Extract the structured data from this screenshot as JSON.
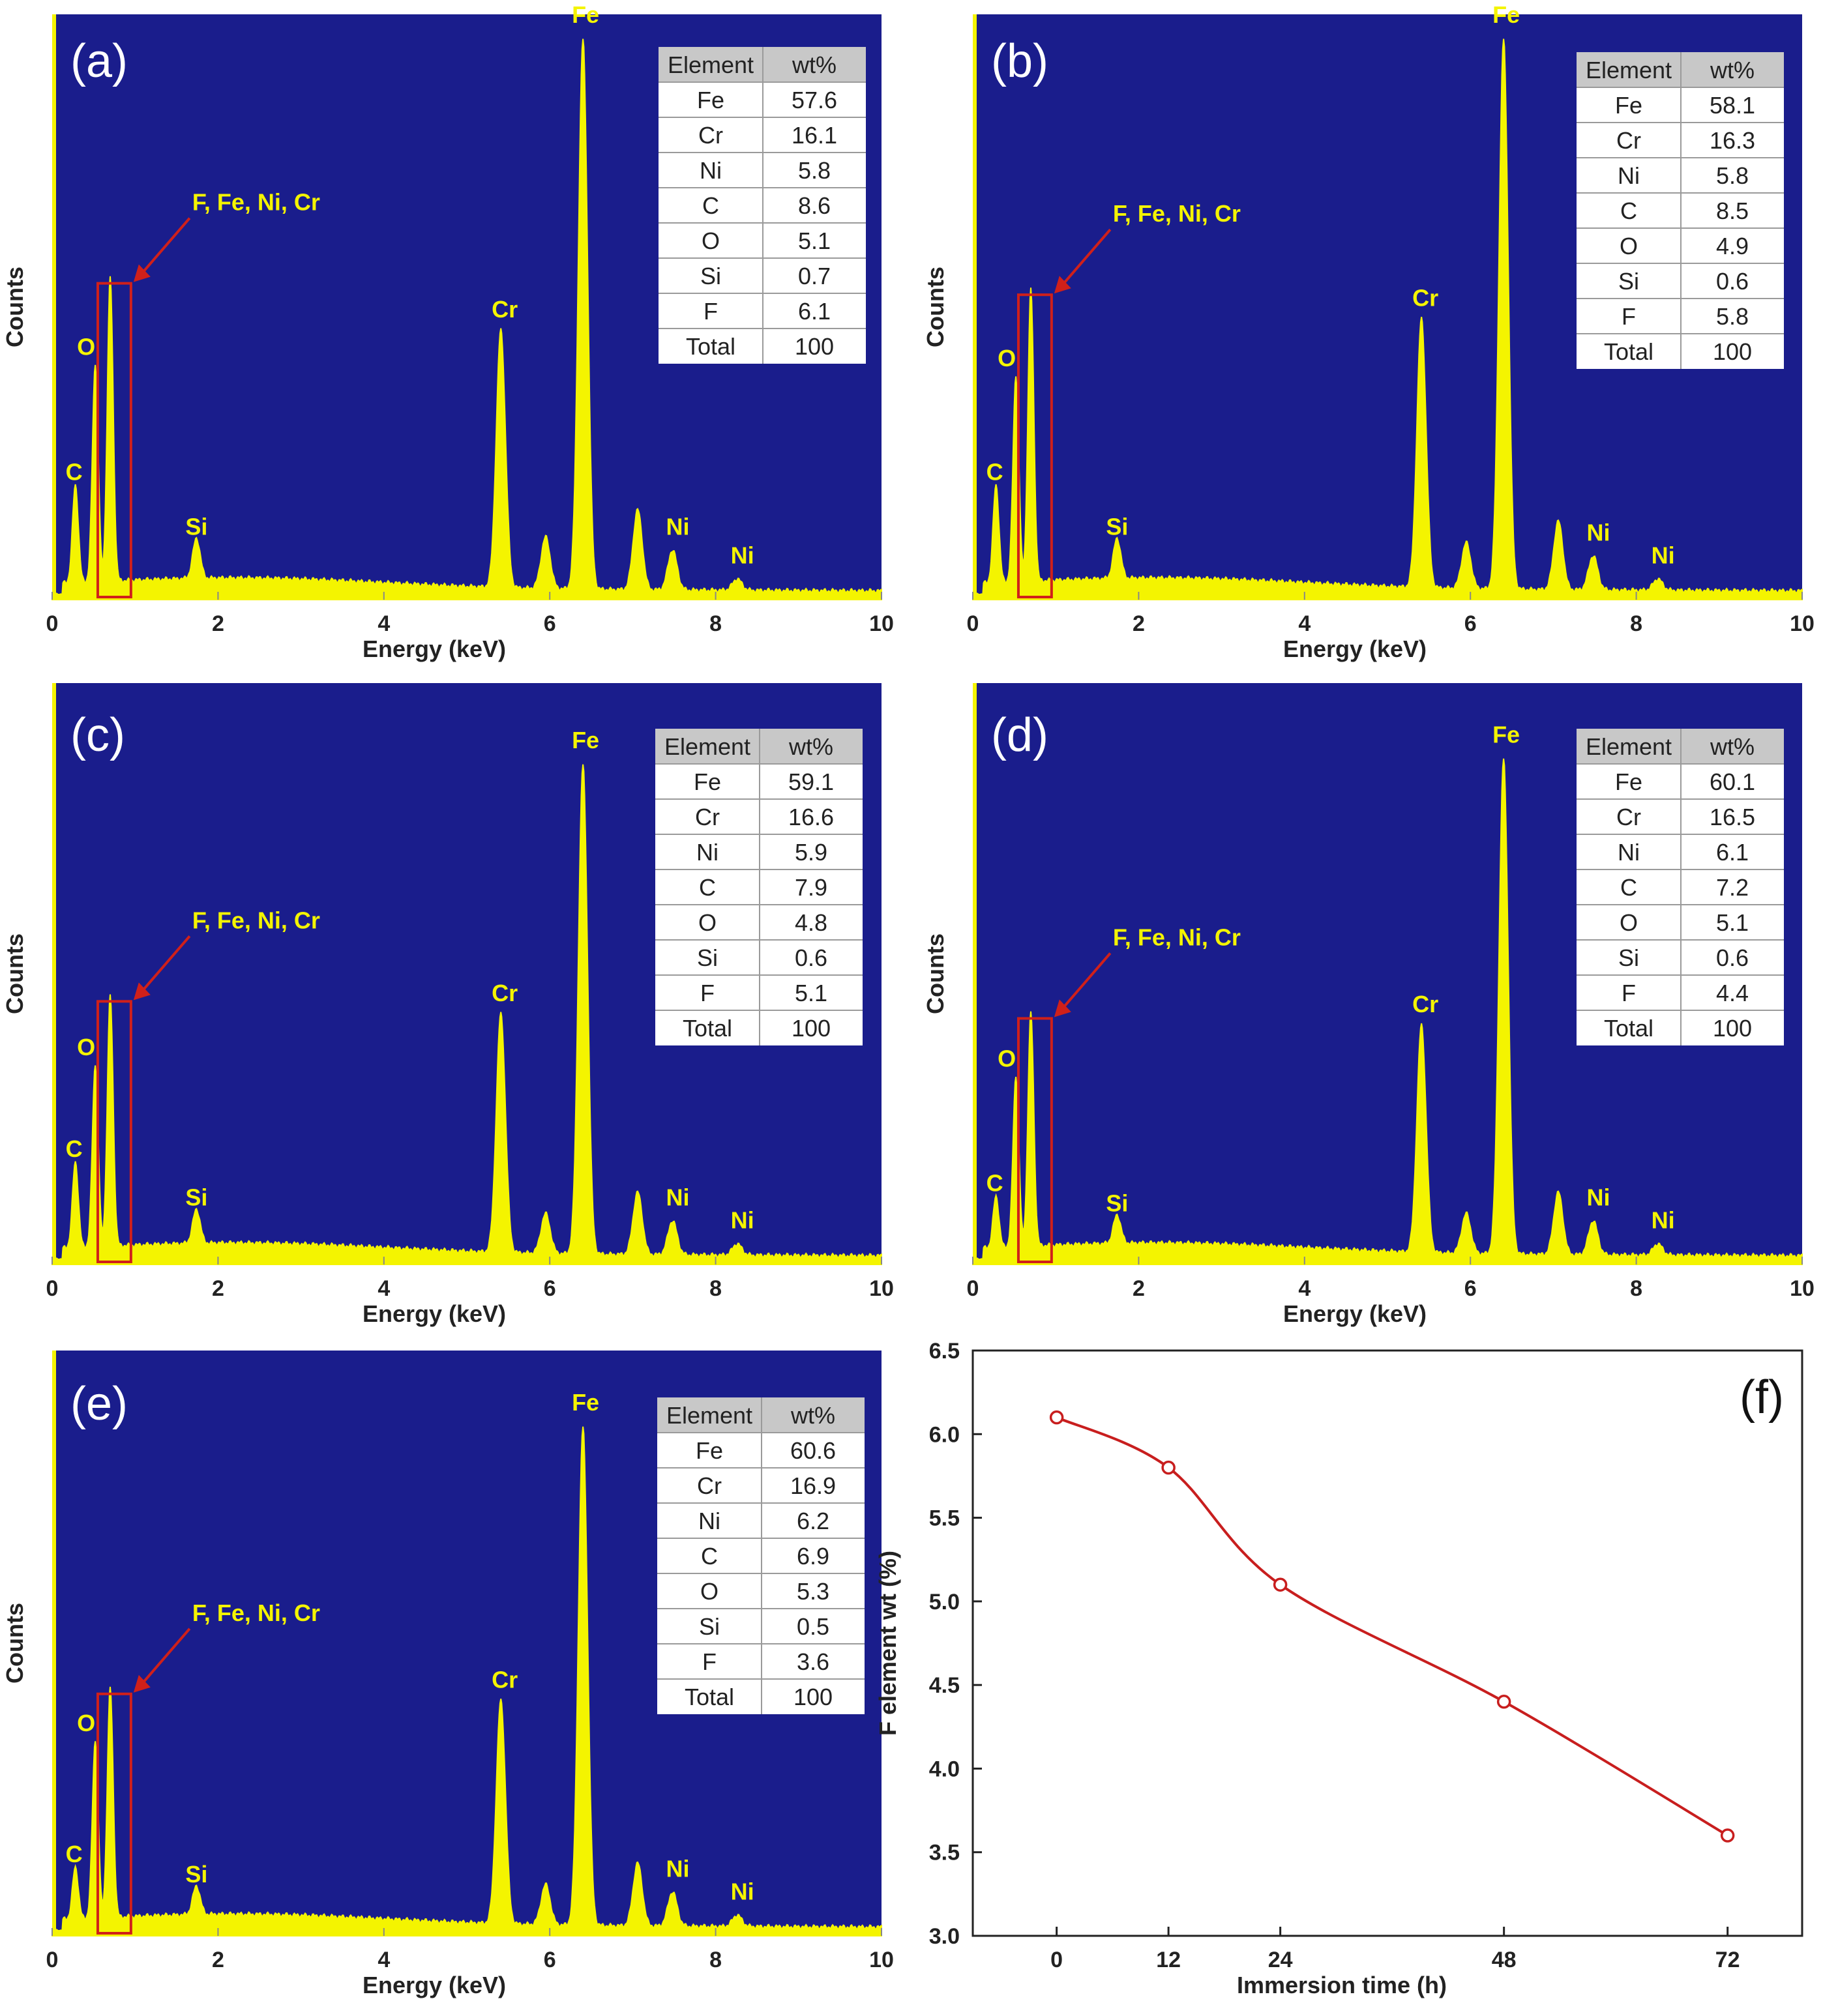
{
  "chart_data": [
    {
      "type": "eds_spectrum",
      "panel_label": "(a)",
      "xlabel": "Energy (keV)",
      "ylabel": "Counts",
      "xlim": [
        0,
        10
      ],
      "x_ticks": [
        "0",
        "2",
        "4",
        "6",
        "8",
        "10"
      ],
      "annotation": "F, Fe, Ni, Cr",
      "peaks": [
        {
          "label": "C",
          "energy": 0.28,
          "height": 0.17
        },
        {
          "label": "O",
          "energy": 0.52,
          "height": 0.38
        },
        {
          "label": "",
          "energy": 0.7,
          "height": 0.53
        },
        {
          "label": "Si",
          "energy": 1.74,
          "height": 0.07
        },
        {
          "label": "Cr",
          "energy": 5.41,
          "height": 0.45
        },
        {
          "label": "",
          "energy": 5.95,
          "height": 0.09
        },
        {
          "label": "Fe",
          "energy": 6.4,
          "height": 0.96
        },
        {
          "label": "",
          "energy": 7.06,
          "height": 0.14
        },
        {
          "label": "Ni",
          "energy": 7.48,
          "height": 0.07
        },
        {
          "label": "Ni",
          "energy": 8.26,
          "height": 0.02
        }
      ],
      "table": {
        "headers": [
          "Element",
          "wt%"
        ],
        "rows": [
          [
            "Fe",
            "57.6"
          ],
          [
            "Cr",
            "16.1"
          ],
          [
            "Ni",
            "5.8"
          ],
          [
            "C",
            "8.6"
          ],
          [
            "O",
            "5.1"
          ],
          [
            "Si",
            "0.7"
          ],
          [
            "F",
            "6.1"
          ],
          [
            "Total",
            "100"
          ]
        ]
      }
    },
    {
      "type": "eds_spectrum",
      "panel_label": "(b)",
      "xlabel": "Energy (keV)",
      "ylabel": "Counts",
      "xlim": [
        0,
        10
      ],
      "x_ticks": [
        "0",
        "2",
        "4",
        "6",
        "8",
        "10"
      ],
      "annotation": "F, Fe, Ni, Cr",
      "peaks": [
        {
          "label": "C",
          "energy": 0.28,
          "height": 0.17
        },
        {
          "label": "O",
          "energy": 0.52,
          "height": 0.36
        },
        {
          "label": "",
          "energy": 0.7,
          "height": 0.51
        },
        {
          "label": "Si",
          "energy": 1.74,
          "height": 0.07
        },
        {
          "label": "Cr",
          "energy": 5.41,
          "height": 0.47
        },
        {
          "label": "",
          "energy": 5.95,
          "height": 0.08
        },
        {
          "label": "Fe",
          "energy": 6.4,
          "height": 0.96
        },
        {
          "label": "",
          "energy": 7.06,
          "height": 0.12
        },
        {
          "label": "Ni",
          "energy": 7.48,
          "height": 0.06
        },
        {
          "label": "Ni",
          "energy": 8.26,
          "height": 0.02
        }
      ],
      "table": {
        "headers": [
          "Element",
          "wt%"
        ],
        "rows": [
          [
            "Fe",
            "58.1"
          ],
          [
            "Cr",
            "16.3"
          ],
          [
            "Ni",
            "5.8"
          ],
          [
            "C",
            "8.5"
          ],
          [
            "O",
            "4.9"
          ],
          [
            "Si",
            "0.6"
          ],
          [
            "F",
            "5.8"
          ],
          [
            "Total",
            "100"
          ]
        ]
      }
    },
    {
      "type": "eds_spectrum",
      "panel_label": "(c)",
      "xlabel": "Energy (keV)",
      "ylabel": "Counts",
      "xlim": [
        0,
        10
      ],
      "x_ticks": [
        "0",
        "2",
        "4",
        "6",
        "8",
        "10"
      ],
      "annotation": "F, Fe, Ni, Cr",
      "peaks": [
        {
          "label": "C",
          "energy": 0.28,
          "height": 0.15
        },
        {
          "label": "O",
          "energy": 0.52,
          "height": 0.32
        },
        {
          "label": "",
          "energy": 0.7,
          "height": 0.44
        },
        {
          "label": "Si",
          "energy": 1.74,
          "height": 0.06
        },
        {
          "label": "Cr",
          "energy": 5.41,
          "height": 0.42
        },
        {
          "label": "",
          "energy": 5.95,
          "height": 0.07
        },
        {
          "label": "Fe",
          "energy": 6.4,
          "height": 0.86
        },
        {
          "label": "",
          "energy": 7.06,
          "height": 0.11
        },
        {
          "label": "Ni",
          "energy": 7.48,
          "height": 0.06
        },
        {
          "label": "Ni",
          "energy": 8.26,
          "height": 0.02
        }
      ],
      "table": {
        "headers": [
          "Element",
          "wt%"
        ],
        "rows": [
          [
            "Fe",
            "59.1"
          ],
          [
            "Cr",
            "16.6"
          ],
          [
            "Ni",
            "5.9"
          ],
          [
            "C",
            "7.9"
          ],
          [
            "O",
            "4.8"
          ],
          [
            "Si",
            "0.6"
          ],
          [
            "F",
            "5.1"
          ],
          [
            "Total",
            "100"
          ]
        ]
      }
    },
    {
      "type": "eds_spectrum",
      "panel_label": "(d)",
      "xlabel": "Energy (keV)",
      "ylabel": "Counts",
      "xlim": [
        0,
        10
      ],
      "x_ticks": [
        "0",
        "2",
        "4",
        "6",
        "8",
        "10"
      ],
      "annotation": "F, Fe, Ni, Cr",
      "peaks": [
        {
          "label": "C",
          "energy": 0.28,
          "height": 0.09
        },
        {
          "label": "O",
          "energy": 0.52,
          "height": 0.3
        },
        {
          "label": "",
          "energy": 0.7,
          "height": 0.41
        },
        {
          "label": "Si",
          "energy": 1.74,
          "height": 0.05
        },
        {
          "label": "Cr",
          "energy": 5.41,
          "height": 0.4
        },
        {
          "label": "",
          "energy": 5.95,
          "height": 0.07
        },
        {
          "label": "Fe",
          "energy": 6.4,
          "height": 0.87
        },
        {
          "label": "",
          "energy": 7.06,
          "height": 0.11
        },
        {
          "label": "Ni",
          "energy": 7.48,
          "height": 0.06
        },
        {
          "label": "Ni",
          "energy": 8.26,
          "height": 0.02
        }
      ],
      "table": {
        "headers": [
          "Element",
          "wt%"
        ],
        "rows": [
          [
            "Fe",
            "60.1"
          ],
          [
            "Cr",
            "16.5"
          ],
          [
            "Ni",
            "6.1"
          ],
          [
            "C",
            "7.2"
          ],
          [
            "O",
            "5.1"
          ],
          [
            "Si",
            "0.6"
          ],
          [
            "F",
            "4.4"
          ],
          [
            "Total",
            "100"
          ]
        ]
      }
    },
    {
      "type": "eds_spectrum",
      "panel_label": "(e)",
      "xlabel": "Energy (keV)",
      "ylabel": "Counts",
      "xlim": [
        0,
        10
      ],
      "x_ticks": [
        "0",
        "2",
        "4",
        "6",
        "8",
        "10"
      ],
      "annotation": "F, Fe, Ni, Cr",
      "peaks": [
        {
          "label": "C",
          "energy": 0.28,
          "height": 0.09
        },
        {
          "label": "O",
          "energy": 0.52,
          "height": 0.31
        },
        {
          "label": "",
          "energy": 0.7,
          "height": 0.4
        },
        {
          "label": "Si",
          "energy": 1.74,
          "height": 0.05
        },
        {
          "label": "Cr",
          "energy": 5.41,
          "height": 0.39
        },
        {
          "label": "",
          "energy": 5.95,
          "height": 0.07
        },
        {
          "label": "Fe",
          "energy": 6.4,
          "height": 0.87
        },
        {
          "label": "",
          "energy": 7.06,
          "height": 0.11
        },
        {
          "label": "Ni",
          "energy": 7.48,
          "height": 0.06
        },
        {
          "label": "Ni",
          "energy": 8.26,
          "height": 0.02
        }
      ],
      "table": {
        "headers": [
          "Element",
          "wt%"
        ],
        "rows": [
          [
            "Fe",
            "60.6"
          ],
          [
            "Cr",
            "16.9"
          ],
          [
            "Ni",
            "6.2"
          ],
          [
            "C",
            "6.9"
          ],
          [
            "O",
            "5.3"
          ],
          [
            "Si",
            "0.5"
          ],
          [
            "F",
            "3.6"
          ],
          [
            "Total",
            "100"
          ]
        ]
      }
    },
    {
      "type": "line",
      "panel_label": "(f)",
      "xlabel": "Immersion time (h)",
      "ylabel": "F element wt (%)",
      "x": [
        0,
        12,
        24,
        48,
        72
      ],
      "values": [
        6.1,
        5.8,
        5.1,
        4.4,
        3.6
      ],
      "xlim": [
        -9,
        80
      ],
      "ylim": [
        3.0,
        6.5
      ],
      "x_ticks": [
        "0",
        "12",
        "24",
        "48",
        "72"
      ],
      "y_ticks": [
        "3.0",
        "3.5",
        "4.0",
        "4.5",
        "5.0",
        "5.5",
        "6.0",
        "6.5"
      ],
      "marker": "open-circle"
    }
  ],
  "colors": {
    "plot_background": "#1a1d8c",
    "spectrum": "#f4f400",
    "peak_label": "#f4f400",
    "highlight_box": "#d0201a",
    "table_header": "#c8c8c8",
    "fluorine_value": "#d0201a",
    "line_series": "#c81e1e"
  }
}
